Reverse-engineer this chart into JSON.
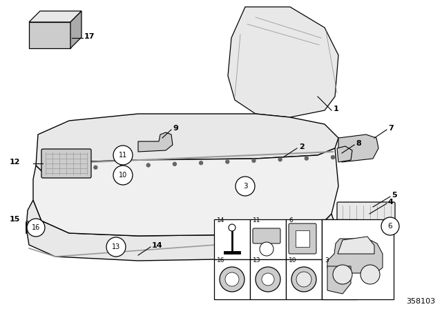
{
  "bg_color": "#ffffff",
  "line_color": "#000000",
  "diagram_id": "358103",
  "gray1": "#aaaaaa",
  "gray2": "#cccccc",
  "gray3": "#e8e8e8",
  "gray_mid": "#999999",
  "gray_dark": "#666666"
}
